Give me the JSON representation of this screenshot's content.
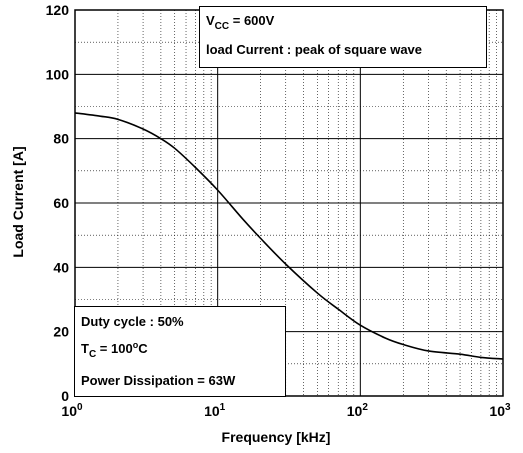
{
  "chart_data": {
    "type": "line",
    "x_scale": "log",
    "xlim": [
      1,
      1000
    ],
    "ylim": [
      0,
      120
    ],
    "xlabel": "Frequency [kHz]",
    "ylabel": "Load Current [A]",
    "x_ticks": [
      {
        "value": 1,
        "base": "10",
        "exp": "0"
      },
      {
        "value": 10,
        "base": "10",
        "exp": "1"
      },
      {
        "value": 100,
        "base": "10",
        "exp": "2"
      },
      {
        "value": 1000,
        "base": "10",
        "exp": "3"
      }
    ],
    "y_ticks": [
      "0",
      "20",
      "40",
      "60",
      "80",
      "100",
      "120"
    ],
    "grid": true,
    "series": [
      {
        "color": "#000000",
        "x": [
          1,
          1.5,
          2,
          3,
          4,
          5,
          7,
          10,
          15,
          20,
          30,
          50,
          70,
          100,
          150,
          200,
          300,
          500,
          700,
          1000
        ],
        "y": [
          88,
          87,
          86,
          83,
          80,
          77,
          71,
          64,
          55,
          49,
          41,
          32,
          27,
          22,
          18,
          16,
          14,
          13,
          12,
          11.5
        ]
      }
    ]
  },
  "annotations": {
    "conditions_top": {
      "vcc_label": "V",
      "vcc_sub": "CC",
      "vcc_value": " = 600V",
      "load_current": "load Current : peak of square wave"
    },
    "conditions_bottom": {
      "duty_cycle": "Duty cycle : 50%",
      "tc_label": "T",
      "tc_sub": "C",
      "tc_value_a": " = 100",
      "tc_sup": "o",
      "tc_value_b": "C",
      "power": "Power Dissipation = 63W"
    }
  }
}
